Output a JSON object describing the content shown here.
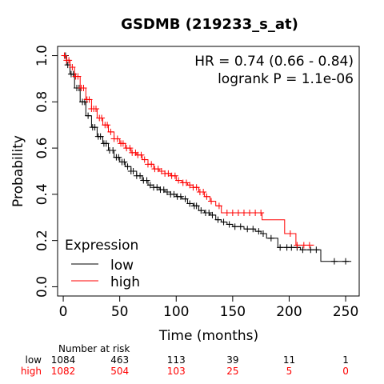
{
  "chart_data": {
    "type": "line",
    "subtype": "kaplan-meier",
    "title": "GSDMB (219233_s_at)",
    "xlabel": "Time (months)",
    "ylabel": "Probability",
    "xlim": [
      -5,
      262
    ],
    "ylim": [
      -0.04,
      1.04
    ],
    "xticks": [
      0,
      50,
      100,
      150,
      200,
      250
    ],
    "yticks": [
      0.0,
      0.2,
      0.4,
      0.6,
      0.8,
      1.0
    ],
    "xtick_labels": [
      "0",
      "50",
      "100",
      "150",
      "200",
      "250"
    ],
    "ytick_labels": [
      "0.0",
      "0.2",
      "0.4",
      "0.6",
      "0.8",
      "1.0"
    ],
    "annotations": {
      "hr": "HR = 0.74 (0.66 - 0.84)",
      "logrank": "logrank P = 1.1e-06"
    },
    "legend": {
      "title": "Expression",
      "placement": "bottom-left"
    },
    "grid": false,
    "series": [
      {
        "name": "low",
        "color": "#000000",
        "points": [
          [
            0,
            1.0
          ],
          [
            3,
            0.96
          ],
          [
            6,
            0.92
          ],
          [
            10,
            0.86
          ],
          [
            15,
            0.8
          ],
          [
            20,
            0.74
          ],
          [
            25,
            0.69
          ],
          [
            30,
            0.65
          ],
          [
            35,
            0.62
          ],
          [
            40,
            0.59
          ],
          [
            45,
            0.56
          ],
          [
            50,
            0.54
          ],
          [
            55,
            0.52
          ],
          [
            60,
            0.5
          ],
          [
            65,
            0.48
          ],
          [
            70,
            0.46
          ],
          [
            75,
            0.44
          ],
          [
            80,
            0.43
          ],
          [
            85,
            0.42
          ],
          [
            90,
            0.41
          ],
          [
            95,
            0.4
          ],
          [
            100,
            0.39
          ],
          [
            105,
            0.38
          ],
          [
            110,
            0.36
          ],
          [
            115,
            0.35
          ],
          [
            120,
            0.33
          ],
          [
            125,
            0.32
          ],
          [
            130,
            0.31
          ],
          [
            135,
            0.29
          ],
          [
            140,
            0.28
          ],
          [
            145,
            0.27
          ],
          [
            150,
            0.26
          ],
          [
            160,
            0.25
          ],
          [
            170,
            0.24
          ],
          [
            175,
            0.23
          ],
          [
            180,
            0.21
          ],
          [
            190,
            0.17
          ],
          [
            200,
            0.17
          ],
          [
            210,
            0.16
          ],
          [
            225,
            0.16
          ],
          [
            228,
            0.11
          ],
          [
            255,
            0.11
          ]
        ],
        "censor_times": [
          2,
          4,
          7,
          9,
          12,
          14,
          17,
          19,
          22,
          26,
          28,
          31,
          33,
          36,
          38,
          41,
          44,
          47,
          49,
          52,
          54,
          57,
          60,
          62,
          65,
          68,
          71,
          74,
          77,
          80,
          83,
          86,
          89,
          92,
          95,
          98,
          101,
          104,
          108,
          112,
          116,
          118,
          122,
          126,
          129,
          132,
          137,
          142,
          147,
          152,
          157,
          163,
          168,
          173,
          177,
          184,
          192,
          198,
          202,
          207,
          212,
          219,
          224,
          240,
          250
        ]
      },
      {
        "name": "high",
        "color": "#ff0000",
        "points": [
          [
            0,
            1.0
          ],
          [
            3,
            0.98
          ],
          [
            6,
            0.95
          ],
          [
            10,
            0.91
          ],
          [
            15,
            0.86
          ],
          [
            20,
            0.81
          ],
          [
            25,
            0.77
          ],
          [
            30,
            0.73
          ],
          [
            35,
            0.7
          ],
          [
            40,
            0.67
          ],
          [
            45,
            0.64
          ],
          [
            50,
            0.62
          ],
          [
            55,
            0.6
          ],
          [
            60,
            0.58
          ],
          [
            65,
            0.57
          ],
          [
            70,
            0.55
          ],
          [
            75,
            0.53
          ],
          [
            80,
            0.51
          ],
          [
            85,
            0.5
          ],
          [
            90,
            0.49
          ],
          [
            95,
            0.48
          ],
          [
            100,
            0.46
          ],
          [
            105,
            0.45
          ],
          [
            110,
            0.44
          ],
          [
            115,
            0.43
          ],
          [
            120,
            0.41
          ],
          [
            125,
            0.39
          ],
          [
            130,
            0.37
          ],
          [
            135,
            0.35
          ],
          [
            140,
            0.32
          ],
          [
            160,
            0.32
          ],
          [
            175,
            0.32
          ],
          [
            176,
            0.29
          ],
          [
            195,
            0.29
          ],
          [
            196,
            0.23
          ],
          [
            205,
            0.23
          ],
          [
            206,
            0.18
          ],
          [
            222,
            0.18
          ]
        ],
        "censor_times": [
          1,
          3,
          5,
          8,
          11,
          13,
          16,
          18,
          21,
          23,
          25,
          27,
          29,
          32,
          34,
          37,
          39,
          42,
          45,
          48,
          51,
          53,
          56,
          59,
          61,
          64,
          66,
          69,
          72,
          75,
          78,
          81,
          84,
          87,
          90,
          93,
          96,
          99,
          102,
          106,
          109,
          112,
          115,
          118,
          121,
          124,
          127,
          131,
          138,
          145,
          150,
          155,
          160,
          165,
          170,
          175,
          201,
          207,
          213,
          218
        ]
      }
    ],
    "risk_table": {
      "header": "Number at risk",
      "times": [
        0,
        50,
        100,
        150,
        200,
        250
      ],
      "rows": [
        {
          "label": "low",
          "color": "#000000",
          "values": [
            "1084",
            "463",
            "113",
            "39",
            "11",
            "1"
          ]
        },
        {
          "label": "high",
          "color": "#ff0000",
          "values": [
            "1082",
            "504",
            "103",
            "25",
            "5",
            "0"
          ]
        }
      ]
    }
  }
}
